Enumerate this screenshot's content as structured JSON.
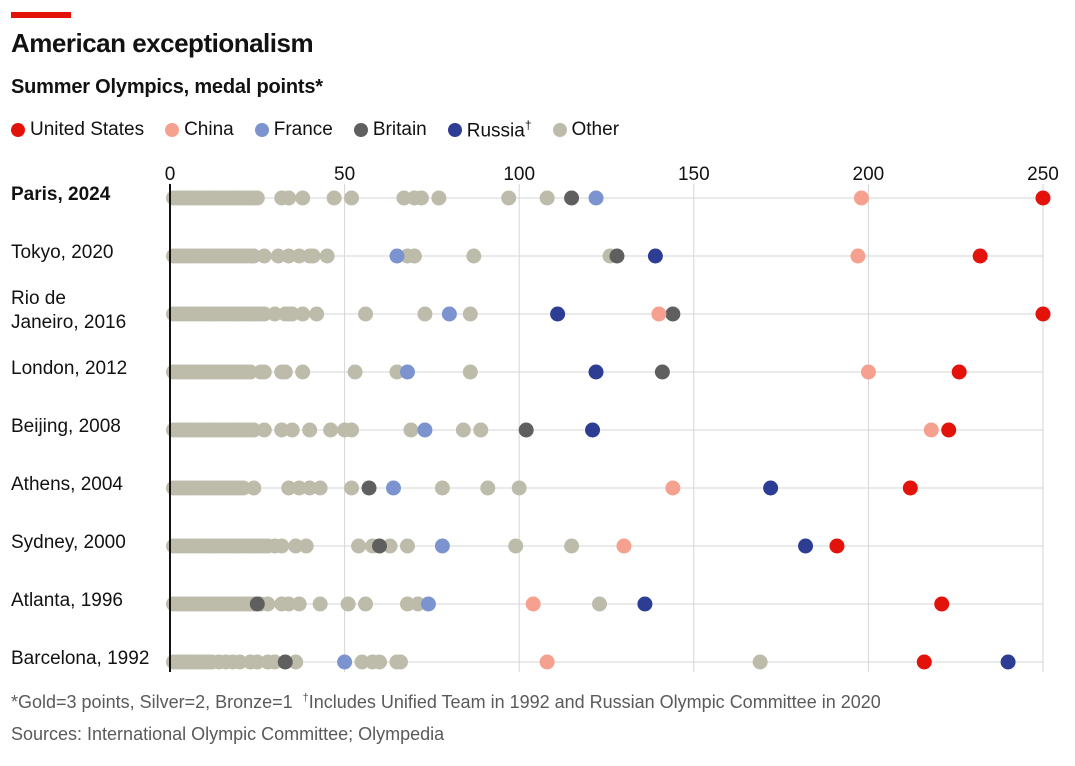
{
  "title": "American exceptionalism",
  "subtitle": "Summer Olympics, medal points*",
  "legend": [
    {
      "label": "United States",
      "color": "#e3120b",
      "sup": ""
    },
    {
      "label": "China",
      "color": "#f6a08f",
      "sup": ""
    },
    {
      "label": "France",
      "color": "#7b94cf",
      "sup": ""
    },
    {
      "label": "Britain",
      "color": "#5f5f5f",
      "sup": ""
    },
    {
      "label": "Russia",
      "color": "#2e3d94",
      "sup": "†"
    },
    {
      "label": "Other",
      "color": "#bdbcab",
      "sup": ""
    }
  ],
  "footnote": {
    "main": "*Gold=3 points, Silver=2, Bronze=1",
    "dagger": "†",
    "dagger_text": "Includes Unified Team in 1992 and Russian Olympic Committee in 2020"
  },
  "source": "Sources: International Olympic Committee; Olympedia",
  "chart_data": {
    "type": "scatter",
    "xlim": [
      0,
      250
    ],
    "xticks": [
      0,
      50,
      100,
      150,
      200,
      250
    ],
    "x_axis_position": "top",
    "grid": true,
    "rows": [
      {
        "label": [
          "Paris, 2024"
        ],
        "bold": true,
        "points": {
          "United States": 250,
          "China": 198,
          "France": 122,
          "Britain": 115,
          "Other": [
            1,
            2,
            3,
            4,
            5,
            6,
            7,
            8,
            9,
            10,
            11,
            12,
            13,
            14,
            15,
            16,
            17,
            18,
            19,
            20,
            21,
            22,
            23,
            24,
            25,
            32,
            34,
            38,
            47,
            52,
            67,
            70,
            72,
            77,
            97,
            108
          ]
        }
      },
      {
        "label": [
          "Tokyo, 2020"
        ],
        "bold": false,
        "points": {
          "United States": 232,
          "China": 197,
          "France": 65,
          "Britain": 128,
          "Russia": 139,
          "Other": [
            1,
            2,
            3,
            4,
            5,
            6,
            7,
            8,
            9,
            10,
            11,
            12,
            13,
            14,
            15,
            16,
            17,
            18,
            19,
            20,
            21,
            22,
            23,
            24,
            27,
            31,
            34,
            37,
            40,
            41,
            45,
            68,
            70,
            87,
            126
          ]
        }
      },
      {
        "label": [
          "Rio de",
          "Janeiro, 2016"
        ],
        "bold": false,
        "points": {
          "United States": 250,
          "China": 140,
          "France": 80,
          "Britain": 144,
          "Russia": 111,
          "Other": [
            1,
            2,
            3,
            4,
            5,
            6,
            7,
            8,
            9,
            10,
            11,
            12,
            13,
            14,
            15,
            16,
            17,
            18,
            19,
            20,
            21,
            22,
            23,
            24,
            25,
            26,
            27,
            30,
            33,
            34,
            35,
            38,
            42,
            56,
            73,
            86
          ]
        }
      },
      {
        "label": [
          "London, 2012"
        ],
        "bold": false,
        "points": {
          "United States": 226,
          "China": 200,
          "France": 68,
          "Britain": 141,
          "Russia": 122,
          "Other": [
            1,
            2,
            3,
            4,
            5,
            6,
            7,
            8,
            9,
            10,
            11,
            12,
            13,
            14,
            15,
            16,
            17,
            18,
            19,
            20,
            21,
            22,
            23,
            26,
            27,
            32,
            33,
            38,
            53,
            65,
            86
          ]
        }
      },
      {
        "label": [
          "Beijing, 2008"
        ],
        "bold": false,
        "points": {
          "United States": 223,
          "China": 218,
          "France": 73,
          "Britain": 102,
          "Russia": 121,
          "Other": [
            1,
            2,
            3,
            4,
            5,
            6,
            7,
            8,
            9,
            10,
            11,
            12,
            13,
            14,
            15,
            16,
            17,
            18,
            19,
            20,
            21,
            22,
            23,
            24,
            27,
            32,
            35,
            40,
            46,
            50,
            52,
            69,
            84,
            89
          ]
        }
      },
      {
        "label": [
          "Athens, 2004"
        ],
        "bold": false,
        "points": {
          "United States": 212,
          "China": 144,
          "France": 64,
          "Britain": 57,
          "Russia": 172,
          "Other": [
            1,
            2,
            3,
            4,
            5,
            6,
            7,
            8,
            9,
            10,
            11,
            12,
            13,
            14,
            15,
            16,
            17,
            18,
            19,
            20,
            21,
            24,
            34,
            37,
            40,
            43,
            52,
            78,
            91,
            100
          ]
        }
      },
      {
        "label": [
          "Sydney, 2000"
        ],
        "bold": false,
        "points": {
          "United States": 191,
          "China": 130,
          "France": 78,
          "Britain": 60,
          "Russia": 182,
          "Other": [
            1,
            2,
            3,
            4,
            5,
            6,
            7,
            8,
            9,
            10,
            11,
            12,
            13,
            14,
            15,
            16,
            17,
            18,
            19,
            20,
            21,
            22,
            23,
            24,
            25,
            26,
            27,
            28,
            30,
            32,
            36,
            39,
            54,
            58,
            63,
            68,
            99,
            115
          ]
        }
      },
      {
        "label": [
          "Atlanta, 1996"
        ],
        "bold": false,
        "points": {
          "United States": 221,
          "China": 104,
          "France": 74,
          "Britain": 25,
          "Russia": 136,
          "Other": [
            1,
            2,
            3,
            4,
            5,
            6,
            7,
            8,
            9,
            10,
            11,
            12,
            13,
            14,
            15,
            16,
            17,
            18,
            19,
            20,
            21,
            22,
            23,
            24,
            26,
            28,
            32,
            34,
            37,
            43,
            51,
            56,
            68,
            71,
            123
          ]
        }
      },
      {
        "label": [
          "Barcelona, 1992"
        ],
        "bold": false,
        "points": {
          "United States": 216,
          "China": 108,
          "France": 50,
          "Britain": 33,
          "Russia": 240,
          "Other": [
            1,
            2,
            3,
            4,
            5,
            6,
            7,
            8,
            9,
            10,
            11,
            12,
            14,
            16,
            18,
            20,
            23,
            25,
            28,
            30,
            36,
            55,
            58,
            60,
            65,
            66,
            169
          ]
        }
      }
    ]
  }
}
